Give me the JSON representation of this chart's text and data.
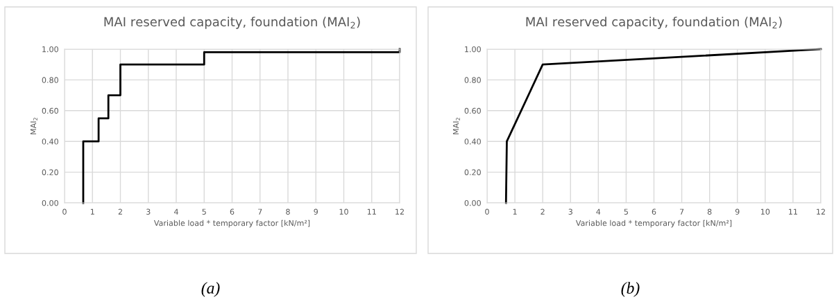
{
  "chart_data": [
    {
      "type": "step",
      "title": "MAI reserved capacity, foundation (MAI$_{2}$)",
      "xlabel": "Variable load * temporary factor [kN/m²]",
      "ylabel": "MAI$_{2}$",
      "annotations": [
        "(a)"
      ],
      "series": [
        {
          "color": "#000000",
          "x": [
            0.67,
            0.67,
            1.22,
            1.57,
            2,
            5,
            12,
            12
          ],
          "values": [
            0,
            0.4,
            0.55,
            0.7,
            0.9,
            0.98,
            0.98,
            1.0
          ]
        }
      ],
      "xlim": [
        0,
        12
      ],
      "xticks": [
        0,
        1,
        2,
        3,
        4,
        5,
        6,
        7,
        8,
        9,
        10,
        11,
        12
      ],
      "ylim": [
        0,
        1
      ],
      "yticks": [
        {
          "value": 0,
          "label": "0.00"
        },
        {
          "value": 0.2,
          "label": "0.20"
        },
        {
          "value": 0.4,
          "label": "0.40"
        },
        {
          "value": 0.6,
          "label": "0.60"
        },
        {
          "value": 0.8,
          "label": "0.80"
        },
        {
          "value": 1,
          "label": "1.00"
        }
      ],
      "grid": true,
      "legend": false
    },
    {
      "type": "line",
      "title": "MAI reserved capacity, foundation (MAI$_{2}$)",
      "xlabel": "Variable load * temporary factor [kN/m²]",
      "ylabel": "MAI$_{2}$",
      "annotations": [
        "(b)"
      ],
      "series": [
        {
          "color": "#000000",
          "x": [
            0.68,
            0.71,
            2,
            12
          ],
          "values": [
            0,
            0.4,
            0.9,
            1.0
          ]
        }
      ],
      "xlim": [
        0,
        12
      ],
      "xticks": [
        0,
        1,
        2,
        3,
        4,
        5,
        6,
        7,
        8,
        9,
        10,
        11,
        12
      ],
      "ylim": [
        0,
        1
      ],
      "yticks": [
        {
          "value": 0,
          "label": "0.00"
        },
        {
          "value": 0.2,
          "label": "0.20"
        },
        {
          "value": 0.4,
          "label": "0.40"
        },
        {
          "value": 0.6,
          "label": "0.60"
        },
        {
          "value": 0.8,
          "label": "0.80"
        },
        {
          "value": 1,
          "label": "1.00"
        }
      ],
      "grid": true,
      "legend": false
    }
  ]
}
